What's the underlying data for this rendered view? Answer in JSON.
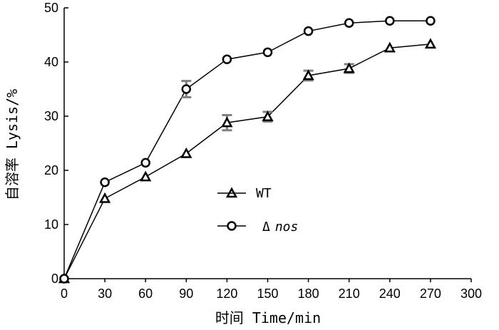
{
  "chart_data": {
    "type": "line",
    "xlabel": "时间 Time/min",
    "ylabel": "自溶率 Lysis/%",
    "xlim": [
      0,
      300
    ],
    "ylim": [
      0,
      50
    ],
    "x_ticks": [
      0,
      30,
      60,
      90,
      120,
      150,
      180,
      210,
      240,
      270,
      300
    ],
    "y_ticks": [
      0,
      10,
      20,
      30,
      40,
      50
    ],
    "grid": false,
    "legend_position": "center-left",
    "x": [
      0,
      30,
      60,
      90,
      120,
      150,
      180,
      210,
      240,
      270
    ],
    "series": [
      {
        "name": "WT",
        "marker": "triangle",
        "values": [
          0,
          14.8,
          18.8,
          23.1,
          28.8,
          29.9,
          37.5,
          38.8,
          42.6,
          43.3
        ],
        "errors": [
          0,
          0,
          0,
          0,
          1.4,
          0.9,
          0.9,
          0.8,
          0,
          0
        ]
      },
      {
        "name": "Δ nos",
        "name_prefix": "Δ",
        "name_suffix": "nos",
        "marker": "circle",
        "values": [
          0,
          17.8,
          21.4,
          35.0,
          40.5,
          41.8,
          45.7,
          47.2,
          47.6,
          47.6
        ],
        "errors": [
          0,
          0,
          0,
          1.5,
          0,
          0,
          0,
          0,
          0,
          0
        ]
      }
    ],
    "colors": {
      "line": "#000000",
      "errorbar": "#808080"
    }
  }
}
